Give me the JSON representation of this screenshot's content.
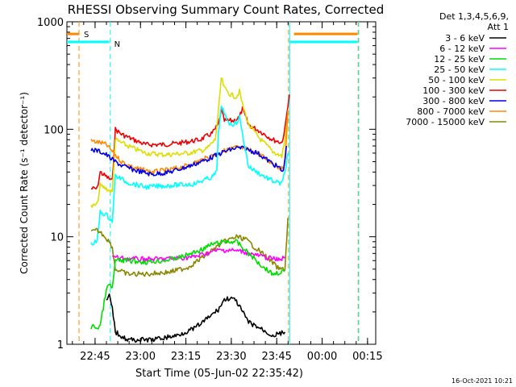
{
  "chart_data": {
    "type": "line",
    "title": "RHESSI Observing Summary Count Rates, Corrected",
    "xlabel": "Start Time (05-Jun-02 22:35:42)",
    "ylabel": "Corrected Count Rate (s⁻¹ detector⁻¹)",
    "yscale": "log",
    "ylim": [
      1,
      1000
    ],
    "xlim_minutes": [
      0,
      102
    ],
    "x_ticks": [
      {
        "t": 9.3,
        "label": "22:45"
      },
      {
        "t": 24.3,
        "label": "23:00"
      },
      {
        "t": 39.3,
        "label": "23:15"
      },
      {
        "t": 54.3,
        "label": "23:30"
      },
      {
        "t": 69.3,
        "label": "23:45"
      },
      {
        "t": 84.3,
        "label": "00:00"
      },
      {
        "t": 99.3,
        "label": "00:15"
      }
    ],
    "y_ticks": [
      {
        "v": 1,
        "label": "1"
      },
      {
        "v": 10,
        "label": "10"
      },
      {
        "v": 100,
        "label": "100"
      },
      {
        "v": 1000,
        "label": "1000"
      }
    ],
    "legend_header": [
      "Det 1,3,4,5,6,9,",
      "Att 1"
    ],
    "legend": [
      {
        "label": "3 - 6 keV",
        "color": "#000000"
      },
      {
        "label": "6 - 12 keV",
        "color": "#ff00ff"
      },
      {
        "label": "12 - 25 keV",
        "color": "#00dd00"
      },
      {
        "label": "25 - 50 keV",
        "color": "#00ffff"
      },
      {
        "label": "50 - 100 keV",
        "color": "#dddd00"
      },
      {
        "label": "100 - 300 keV",
        "color": "#ee0000"
      },
      {
        "label": "300 - 800 keV",
        "color": "#0000ee"
      },
      {
        "label": "800 - 7000 keV",
        "color": "#ff8800"
      },
      {
        "label": "7000 - 15000 keV",
        "color": "#888800"
      }
    ],
    "series": [
      {
        "name": "100 - 300 keV",
        "color": "#ee0000",
        "points": [
          [
            8,
            28
          ],
          [
            10,
            28
          ],
          [
            11,
            40
          ],
          [
            12,
            38
          ],
          [
            15,
            33
          ],
          [
            16,
            100
          ],
          [
            18,
            90
          ],
          [
            22,
            80
          ],
          [
            26,
            72
          ],
          [
            32,
            72
          ],
          [
            38,
            75
          ],
          [
            44,
            80
          ],
          [
            48,
            92
          ],
          [
            50,
            110
          ],
          [
            51,
            150
          ],
          [
            52,
            120
          ],
          [
            55,
            120
          ],
          [
            57,
            130
          ],
          [
            58,
            155
          ],
          [
            60,
            110
          ],
          [
            64,
            95
          ],
          [
            68,
            80
          ],
          [
            71,
            75
          ],
          [
            72,
            100
          ],
          [
            73,
            170
          ],
          [
            73.5,
            210
          ]
        ]
      },
      {
        "name": "50 - 100 keV",
        "color": "#dddd00",
        "points": [
          [
            8,
            19
          ],
          [
            10,
            20
          ],
          [
            11,
            30
          ],
          [
            13,
            28
          ],
          [
            15,
            26
          ],
          [
            16,
            80
          ],
          [
            20,
            70
          ],
          [
            26,
            60
          ],
          [
            32,
            58
          ],
          [
            40,
            60
          ],
          [
            46,
            65
          ],
          [
            49,
            80
          ],
          [
            50,
            140
          ],
          [
            51,
            300
          ],
          [
            52,
            240
          ],
          [
            54,
            210
          ],
          [
            56,
            200
          ],
          [
            57,
            225
          ],
          [
            58,
            170
          ],
          [
            60,
            110
          ],
          [
            64,
            80
          ],
          [
            68,
            62
          ],
          [
            71,
            56
          ],
          [
            72,
            80
          ],
          [
            73,
            150
          ]
        ]
      },
      {
        "name": "800 - 7000 keV",
        "color": "#ff8800",
        "points": [
          [
            8,
            78
          ],
          [
            11,
            75
          ],
          [
            13,
            72
          ],
          [
            15,
            62
          ],
          [
            18,
            50
          ],
          [
            22,
            44
          ],
          [
            28,
            40
          ],
          [
            34,
            42
          ],
          [
            40,
            46
          ],
          [
            46,
            54
          ],
          [
            52,
            63
          ],
          [
            56,
            68
          ],
          [
            59,
            66
          ],
          [
            63,
            60
          ],
          [
            67,
            50
          ],
          [
            70,
            44
          ],
          [
            71.5,
            42
          ],
          [
            72.5,
            80
          ],
          [
            73,
            150
          ]
        ]
      },
      {
        "name": "300 - 800 keV",
        "color": "#0000ee",
        "points": [
          [
            8,
            65
          ],
          [
            11,
            62
          ],
          [
            13,
            58
          ],
          [
            15,
            52
          ],
          [
            18,
            46
          ],
          [
            22,
            42
          ],
          [
            28,
            38
          ],
          [
            34,
            40
          ],
          [
            40,
            45
          ],
          [
            46,
            52
          ],
          [
            52,
            62
          ],
          [
            56,
            67
          ],
          [
            59,
            66
          ],
          [
            63,
            60
          ],
          [
            67,
            50
          ],
          [
            70,
            44
          ],
          [
            71.5,
            40
          ],
          [
            72.5,
            70
          ]
        ]
      },
      {
        "name": "25 - 50 keV",
        "color": "#00ffff",
        "points": [
          [
            8,
            8.5
          ],
          [
            10,
            9
          ],
          [
            11,
            17
          ],
          [
            13,
            16
          ],
          [
            15,
            14
          ],
          [
            16,
            37
          ],
          [
            20,
            32
          ],
          [
            26,
            29
          ],
          [
            34,
            30
          ],
          [
            42,
            31
          ],
          [
            48,
            36
          ],
          [
            49.5,
            40
          ],
          [
            50,
            90
          ],
          [
            51,
            160
          ],
          [
            52,
            140
          ],
          [
            54,
            110
          ],
          [
            56,
            115
          ],
          [
            57,
            130
          ],
          [
            58,
            90
          ],
          [
            60,
            45
          ],
          [
            64,
            38
          ],
          [
            68,
            33
          ],
          [
            71,
            31
          ],
          [
            72,
            40
          ],
          [
            73,
            60
          ]
        ]
      },
      {
        "name": "7000 - 15000 keV",
        "color": "#888800",
        "points": [
          [
            8,
            11
          ],
          [
            10,
            11.5
          ],
          [
            12,
            10.5
          ],
          [
            14,
            9
          ],
          [
            15,
            8
          ],
          [
            16,
            5
          ],
          [
            20,
            4.5
          ],
          [
            26,
            4.5
          ],
          [
            34,
            4.7
          ],
          [
            40,
            5.2
          ],
          [
            44,
            6.2
          ],
          [
            48,
            7.5
          ],
          [
            52,
            9
          ],
          [
            56,
            10
          ],
          [
            59,
            9.5
          ],
          [
            62,
            8
          ],
          [
            66,
            6.5
          ],
          [
            70,
            5
          ],
          [
            72,
            5
          ],
          [
            73,
            15
          ]
        ]
      },
      {
        "name": "6 - 12 keV",
        "color": "#ff00ff",
        "points": [
          [
            15,
            6.5
          ],
          [
            18,
            6.3
          ],
          [
            24,
            6.2
          ],
          [
            30,
            6.2
          ],
          [
            36,
            6.3
          ],
          [
            42,
            6.5
          ],
          [
            46,
            7
          ],
          [
            50,
            7.5
          ],
          [
            54,
            7.5
          ],
          [
            58,
            7.3
          ],
          [
            62,
            6.8
          ],
          [
            66,
            6.4
          ],
          [
            70,
            6.1
          ],
          [
            72,
            6.5
          ]
        ]
      },
      {
        "name": "12 - 25 keV",
        "color": "#00dd00",
        "points": [
          [
            8,
            1.4
          ],
          [
            9,
            1.5
          ],
          [
            10,
            1.4
          ],
          [
            11,
            1.5
          ],
          [
            13,
            3.2
          ],
          [
            14,
            3.6
          ],
          [
            15,
            3.3
          ],
          [
            16,
            6
          ],
          [
            20,
            6
          ],
          [
            26,
            5.8
          ],
          [
            32,
            6
          ],
          [
            38,
            6.5
          ],
          [
            44,
            7.5
          ],
          [
            48,
            8.5
          ],
          [
            52,
            9
          ],
          [
            56,
            9
          ],
          [
            60,
            7
          ],
          [
            64,
            5.5
          ],
          [
            68,
            4.5
          ],
          [
            72,
            4.8
          ]
        ]
      },
      {
        "name": "3 - 6 keV",
        "color": "#000000",
        "points": [
          [
            13,
            2.5
          ],
          [
            14,
            2.8
          ],
          [
            15,
            2.2
          ],
          [
            16,
            1.3
          ],
          [
            20,
            1.1
          ],
          [
            28,
            1.1
          ],
          [
            36,
            1.2
          ],
          [
            42,
            1.4
          ],
          [
            46,
            1.7
          ],
          [
            50,
            2.1
          ],
          [
            52,
            2.6
          ],
          [
            54,
            2.7
          ],
          [
            56,
            2.5
          ],
          [
            58,
            2
          ],
          [
            60,
            1.6
          ],
          [
            64,
            1.4
          ],
          [
            68,
            1.2
          ],
          [
            72,
            1.3
          ]
        ]
      }
    ],
    "flag_bars": [
      {
        "label": "S",
        "color": "#ff8800",
        "segments": [
          [
            0,
            4
          ],
          [
            75,
            96
          ]
        ],
        "level": 770
      },
      {
        "label": "N",
        "color": "#00ffff",
        "segments": [
          [
            0,
            14
          ],
          [
            73.5,
            96
          ]
        ],
        "level": 650
      }
    ],
    "vertical_lines": [
      {
        "t": 4,
        "color": "#ff8800",
        "dash": true
      },
      {
        "t": 14.3,
        "color": "#00ffff",
        "dash": true
      },
      {
        "t": 73.2,
        "color": "#ff8800",
        "dash": true
      },
      {
        "t": 73.6,
        "color": "#00ffff",
        "dash": false
      },
      {
        "t": 96.2,
        "color": "#ff8800",
        "dash": true
      },
      {
        "t": 96.4,
        "color": "#00ffff",
        "dash": true
      }
    ]
  },
  "footer": {
    "timestamp": "16-Oct-2021 10:21"
  }
}
